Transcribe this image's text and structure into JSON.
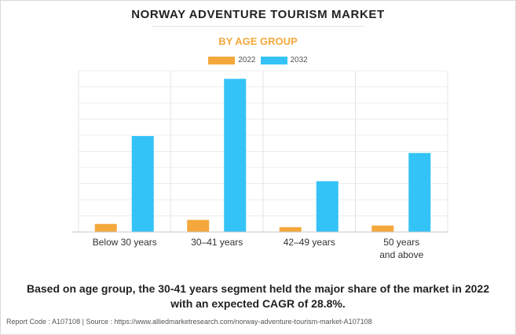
{
  "title": "NORWAY ADVENTURE TOURISM MARKET",
  "subtitle": "BY AGE GROUP",
  "caption": {
    "line1": "Based on age group, the 30-41 years segment held the major share of the market in 2022",
    "line2": "with an expected CAGR of 28.8%."
  },
  "footer": {
    "report_code": "Report Code : A107108",
    "separator": "|",
    "source": "Source : https://www.alliedmarketresearch.com/norway-adventure-tourism-market-A107108"
  },
  "colors": {
    "series_2022": "#f4a83c",
    "series_2032": "#33c3f7",
    "subtitle": "#f4a83c"
  },
  "chart_data": {
    "type": "bar",
    "title": "NORWAY ADVENTURE TOURISM MARKET",
    "subtitle": "BY AGE GROUP",
    "categories": [
      "Below 30 years",
      "30–41 years",
      "42–49 years",
      "50 years and above"
    ],
    "category_lines": [
      [
        "Below 30 years"
      ],
      [
        "30–41 years"
      ],
      [
        "42–49 years"
      ],
      [
        "50 years",
        "and above"
      ]
    ],
    "series": [
      {
        "name": "2022",
        "color": "#f4a83c",
        "values": [
          10,
          15,
          6,
          8
        ]
      },
      {
        "name": "2032",
        "color": "#33c3f7",
        "values": [
          119,
          190,
          63,
          98
        ]
      }
    ],
    "xlabel": "",
    "ylabel": "",
    "ylim": [
      0,
      200
    ],
    "grid": true,
    "y_tick_labels_shown": false,
    "legend_position": "top-center"
  }
}
